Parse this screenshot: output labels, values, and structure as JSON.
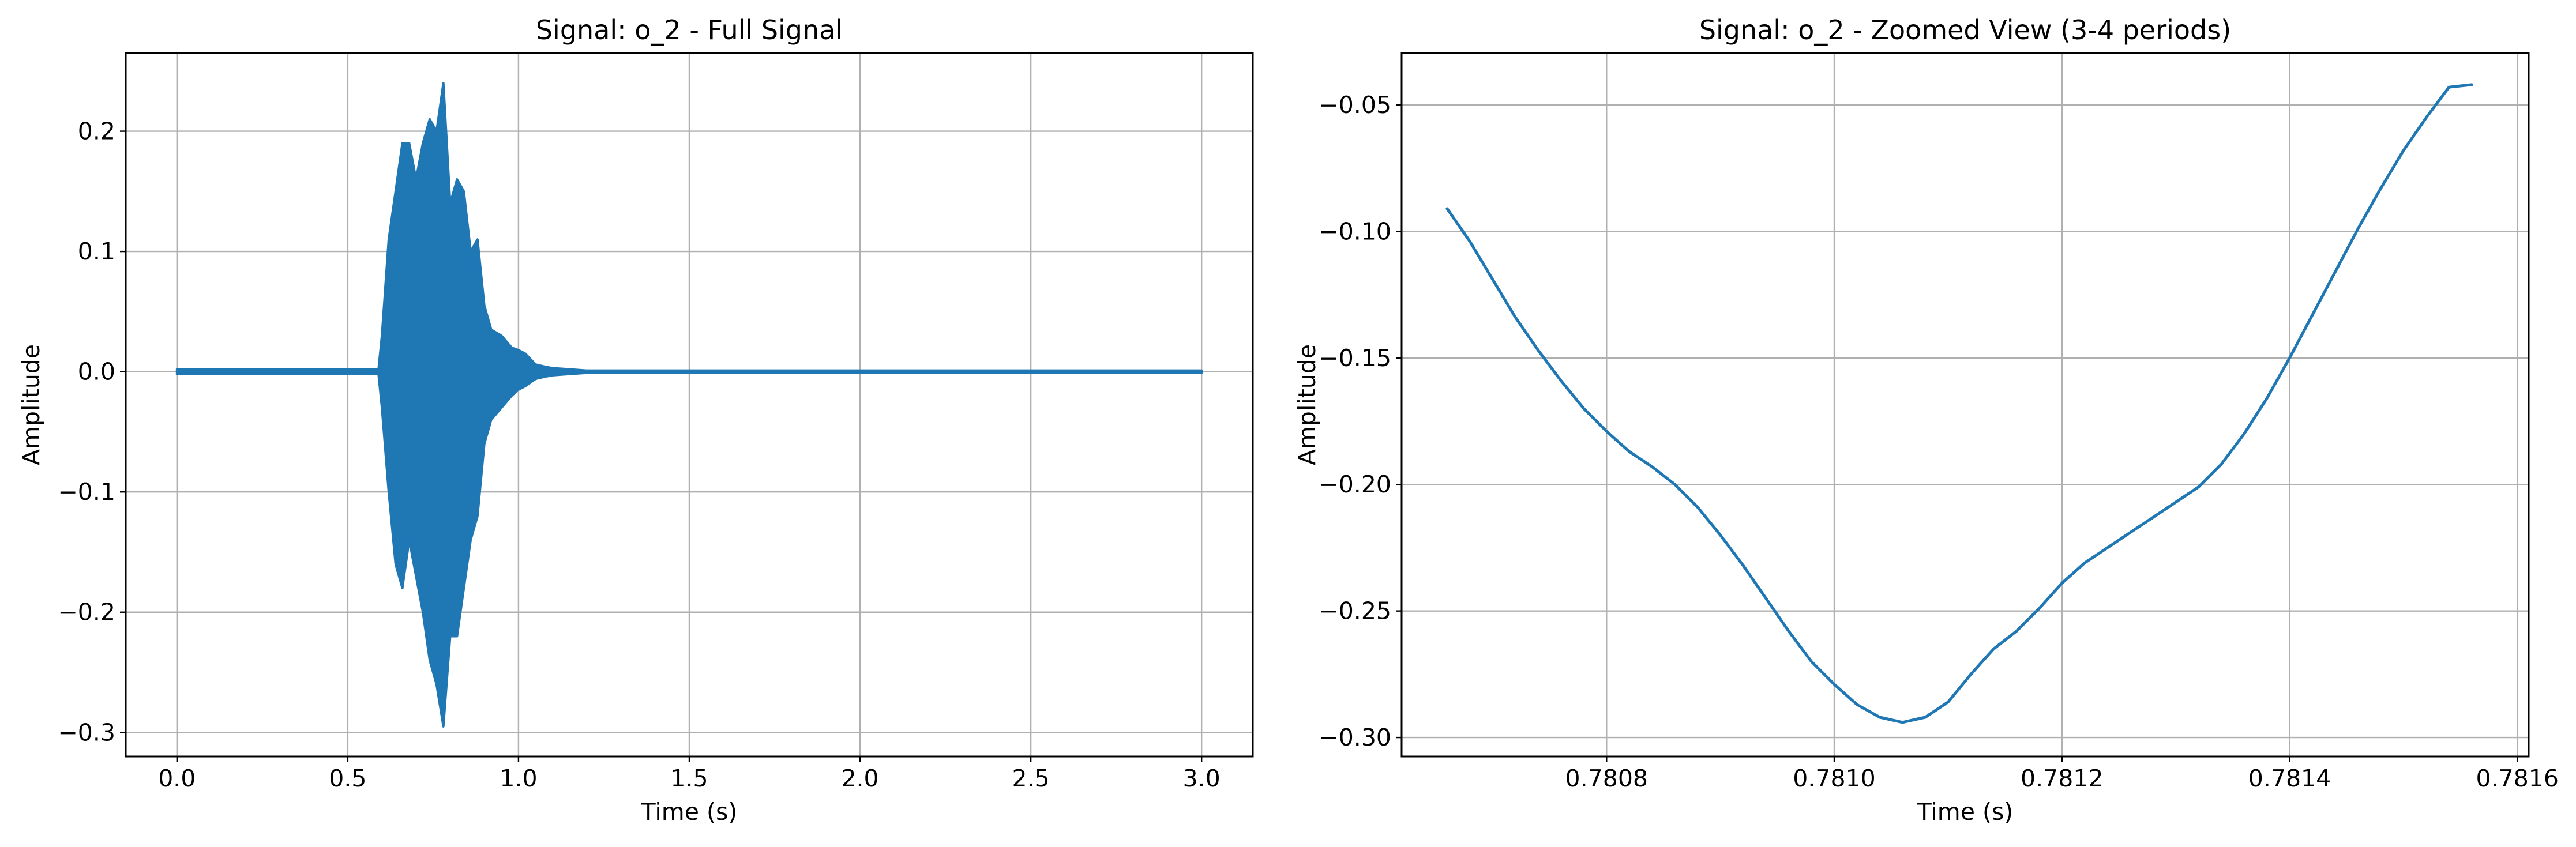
{
  "chart_data": [
    {
      "type": "line",
      "title": "Signal: o_2 - Full Signal",
      "xlabel": "Time (s)",
      "ylabel": "Amplitude",
      "xlim": [
        -0.15,
        3.15
      ],
      "ylim": [
        -0.32,
        0.265
      ],
      "grid": true,
      "xticks": [
        0.0,
        0.5,
        1.0,
        1.5,
        2.0,
        2.5,
        3.0
      ],
      "xtick_labels": [
        "0.0",
        "0.5",
        "1.0",
        "1.5",
        "2.0",
        "2.5",
        "3.0"
      ],
      "yticks": [
        -0.3,
        -0.2,
        -0.1,
        0.0,
        0.1,
        0.2
      ],
      "ytick_labels": [
        "−0.3",
        "−0.2",
        "−0.1",
        "0.0",
        "0.1",
        "0.2"
      ],
      "series": [
        {
          "color": "#1f77b4",
          "envelope": {
            "x": [
              0.0,
              0.59,
              0.6,
              0.62,
              0.64,
              0.66,
              0.68,
              0.7,
              0.72,
              0.74,
              0.76,
              0.78,
              0.8,
              0.82,
              0.84,
              0.86,
              0.88,
              0.9,
              0.92,
              0.95,
              0.98,
              1.0,
              1.02,
              1.05,
              1.08,
              1.1,
              1.15,
              1.2,
              3.0
            ],
            "upper": [
              0.002,
              0.002,
              0.03,
              0.11,
              0.15,
              0.19,
              0.19,
              0.16,
              0.19,
              0.21,
              0.2,
              0.24,
              0.14,
              0.16,
              0.15,
              0.1,
              0.11,
              0.055,
              0.035,
              0.03,
              0.02,
              0.018,
              0.015,
              0.006,
              0.004,
              0.003,
              0.002,
              0.001,
              0.001
            ],
            "lower": [
              -0.002,
              -0.002,
              -0.03,
              -0.1,
              -0.16,
              -0.18,
              -0.14,
              -0.17,
              -0.2,
              -0.24,
              -0.26,
              -0.295,
              -0.22,
              -0.22,
              -0.18,
              -0.14,
              -0.12,
              -0.06,
              -0.04,
              -0.03,
              -0.02,
              -0.015,
              -0.012,
              -0.006,
              -0.004,
              -0.003,
              -0.002,
              -0.001,
              -0.001
            ]
          }
        }
      ]
    },
    {
      "type": "line",
      "title": "Signal: o_2 - Zoomed View (3-4 periods)",
      "xlabel": "Time (s)",
      "ylabel": "Amplitude",
      "xlim": [
        0.78062,
        0.78161
      ],
      "ylim": [
        -0.3075,
        -0.0295
      ],
      "grid": true,
      "xticks": [
        0.7808,
        0.781,
        0.7812,
        0.7814,
        0.7816
      ],
      "xtick_labels": [
        "0.7808",
        "0.7810",
        "0.7812",
        "0.7814",
        "0.7816"
      ],
      "yticks": [
        -0.3,
        -0.25,
        -0.2,
        -0.15,
        -0.1,
        -0.05
      ],
      "ytick_labels": [
        "−0.30",
        "−0.25",
        "−0.20",
        "−0.15",
        "−0.10",
        "−0.05"
      ],
      "series": [
        {
          "color": "#1f77b4",
          "x": [
            0.78066,
            0.78068,
            0.7807,
            0.78072,
            0.78074,
            0.78076,
            0.78078,
            0.7808,
            0.78082,
            0.78084,
            0.78086,
            0.78088,
            0.7809,
            0.78092,
            0.78094,
            0.78096,
            0.78098,
            0.781,
            0.78102,
            0.78104,
            0.78106,
            0.78108,
            0.7811,
            0.78112,
            0.78114,
            0.78116,
            0.78118,
            0.7812,
            0.78122,
            0.78124,
            0.78126,
            0.78128,
            0.7813,
            0.78132,
            0.78134,
            0.78136,
            0.78138,
            0.7814,
            0.78142,
            0.78144,
            0.78146,
            0.78148,
            0.7815,
            0.78152,
            0.78154,
            0.78156
          ],
          "y": [
            -0.091,
            -0.104,
            -0.119,
            -0.134,
            -0.147,
            -0.159,
            -0.17,
            -0.179,
            -0.187,
            -0.193,
            -0.2,
            -0.209,
            -0.22,
            -0.232,
            -0.245,
            -0.258,
            -0.27,
            -0.279,
            -0.287,
            -0.292,
            -0.294,
            -0.292,
            -0.286,
            -0.275,
            -0.265,
            -0.258,
            -0.249,
            -0.239,
            -0.231,
            -0.225,
            -0.219,
            -0.213,
            -0.207,
            -0.201,
            -0.192,
            -0.18,
            -0.166,
            -0.15,
            -0.133,
            -0.116,
            -0.099,
            -0.083,
            -0.068,
            -0.055,
            -0.043,
            -0.042
          ]
        }
      ]
    }
  ]
}
